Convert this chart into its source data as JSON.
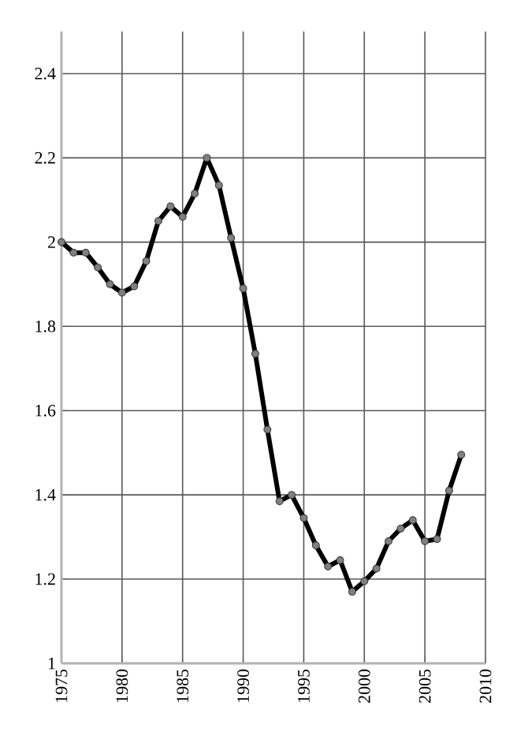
{
  "chart_data": {
    "type": "line",
    "x": [
      1975,
      1976,
      1977,
      1978,
      1979,
      1980,
      1981,
      1982,
      1983,
      1984,
      1985,
      1986,
      1987,
      1988,
      1989,
      1990,
      1991,
      1992,
      1993,
      1994,
      1995,
      1996,
      1997,
      1998,
      1999,
      2000,
      2001,
      2002,
      2003,
      2004,
      2005,
      2006,
      2007,
      2008
    ],
    "values": [
      2.0,
      1.975,
      1.975,
      1.94,
      1.9,
      1.88,
      1.895,
      1.955,
      2.05,
      2.085,
      2.06,
      2.115,
      2.2,
      2.135,
      2.01,
      1.89,
      1.735,
      1.555,
      1.385,
      1.4,
      1.345,
      1.28,
      1.23,
      1.245,
      1.17,
      1.195,
      1.225,
      1.29,
      1.32,
      1.34,
      1.29,
      1.295,
      1.41,
      1.495
    ],
    "color": "#000000",
    "marker": "circle",
    "line_style": "solid",
    "grid": true,
    "xlim": [
      1975,
      2010
    ],
    "xticks": [
      1975,
      1980,
      1985,
      1990,
      1995,
      2000,
      2005,
      2010
    ],
    "ylim": [
      1,
      2.5
    ],
    "yticks": [
      1,
      1.2,
      1.4,
      1.6,
      1.8,
      2,
      2.2,
      2.4
    ]
  }
}
